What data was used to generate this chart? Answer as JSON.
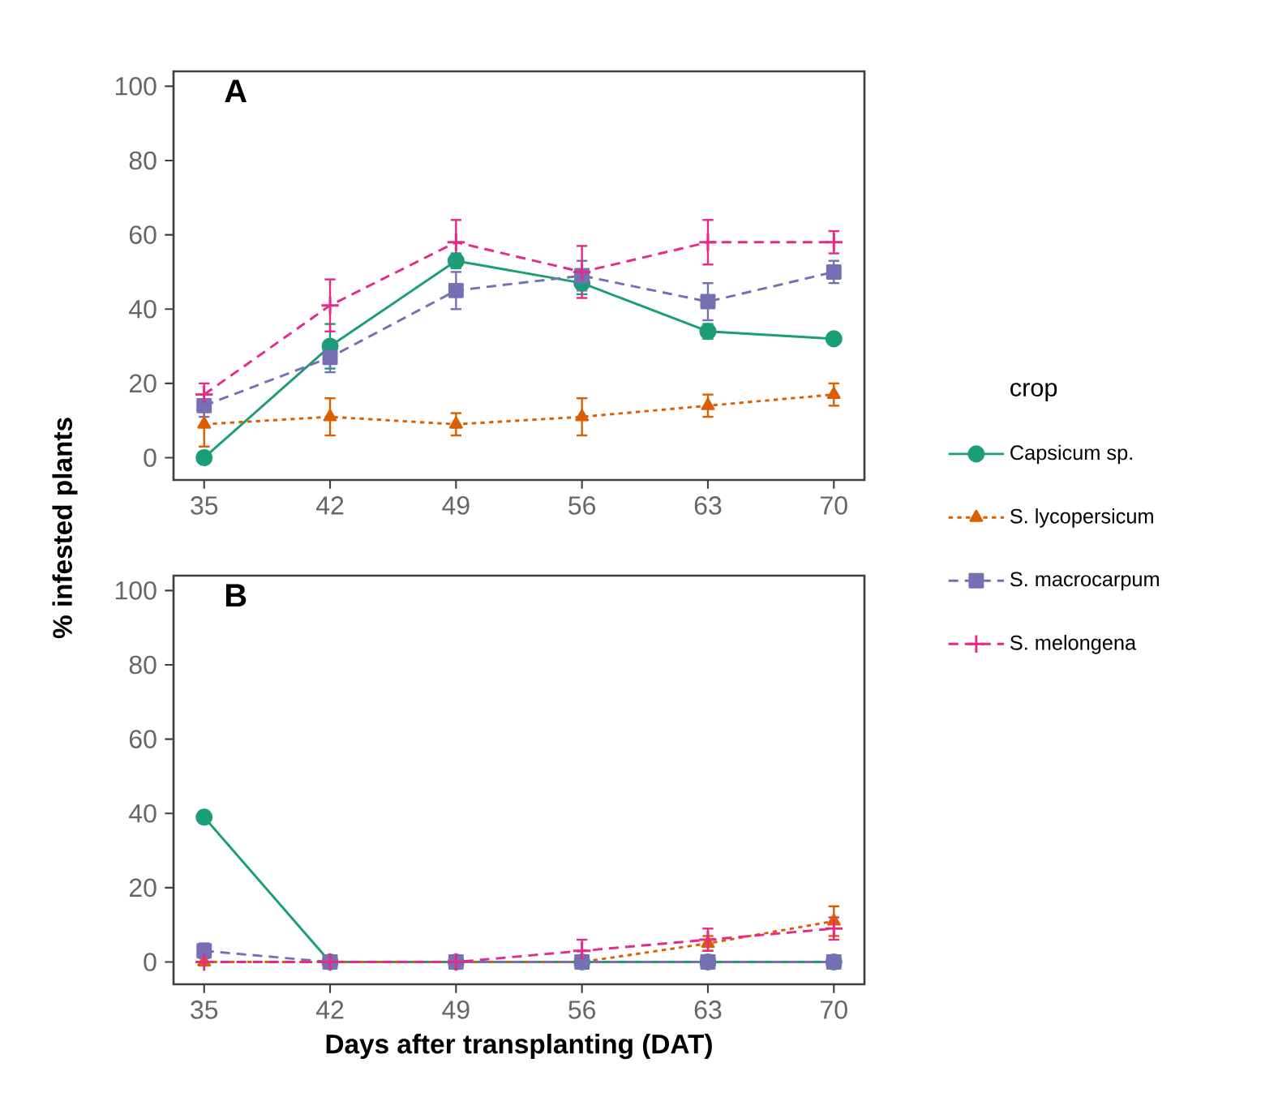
{
  "chart_data": [
    {
      "type": "line",
      "title": "A",
      "ylabel": "% infested plants",
      "x": [
        35,
        42,
        49,
        56,
        63,
        70
      ],
      "xlim": [
        33.3,
        71.7
      ],
      "ylim": [
        -6,
        104
      ],
      "xticks": [
        35,
        42,
        49,
        56,
        63,
        70
      ],
      "yticks": [
        0,
        20,
        40,
        60,
        80,
        100
      ],
      "legend": "right",
      "legend_title": "crop",
      "series": [
        {
          "name": "Capsicum sp.",
          "color": "#1b9e77",
          "marker": "circle",
          "line_style": "solid",
          "values": [
            0,
            30,
            53,
            47,
            34,
            32
          ],
          "errors": [
            null,
            6,
            2,
            3,
            2,
            1
          ]
        },
        {
          "name": "S. lycopersicum",
          "color": "#d95f02",
          "marker": "triangle",
          "line_style": "dotted",
          "values": [
            9,
            11,
            9,
            11,
            14,
            17
          ],
          "errors": [
            6,
            5,
            3,
            5,
            3,
            3
          ]
        },
        {
          "name": "S. macrocarpum",
          "color": "#7570b3",
          "marker": "square",
          "line_style": "dashed",
          "values": [
            14,
            27,
            45,
            49,
            42,
            50
          ],
          "errors": [
            3,
            4,
            5,
            4,
            5,
            3
          ]
        },
        {
          "name": "S. melongena",
          "color": "#e7298a",
          "marker": "cross",
          "line_style": "dashed",
          "values": [
            17,
            41,
            58,
            50,
            58,
            58
          ],
          "errors": [
            3,
            7,
            6,
            7,
            6,
            3
          ]
        }
      ]
    },
    {
      "type": "line",
      "title": "B",
      "xlabel": "Days after transplanting (DAT)",
      "x": [
        35,
        42,
        49,
        56,
        63,
        70
      ],
      "xlim": [
        33.3,
        71.7
      ],
      "ylim": [
        -6,
        104
      ],
      "xticks": [
        35,
        42,
        49,
        56,
        63,
        70
      ],
      "yticks": [
        0,
        20,
        40,
        60,
        80,
        100
      ],
      "series": [
        {
          "color": "#1b9e77",
          "marker": "circle",
          "line_style": "solid",
          "values": [
            39,
            0,
            0,
            0,
            0,
            0
          ]
        },
        {
          "color": "#d95f02",
          "marker": "triangle",
          "line_style": "dotted",
          "values": [
            0,
            0,
            0,
            0,
            5,
            11
          ],
          "errors": [
            null,
            null,
            null,
            null,
            2,
            4
          ]
        },
        {
          "color": "#7570b3",
          "marker": "square",
          "line_style": "dashed",
          "values": [
            3,
            0,
            0,
            0,
            0,
            0
          ],
          "errors": [
            2,
            null,
            null,
            null,
            null,
            null
          ]
        },
        {
          "color": "#e7298a",
          "marker": "cross",
          "line_style": "dashed",
          "values": [
            0,
            0,
            0,
            3,
            6,
            9
          ],
          "errors": [
            null,
            null,
            null,
            3,
            3,
            3
          ]
        }
      ]
    }
  ]
}
